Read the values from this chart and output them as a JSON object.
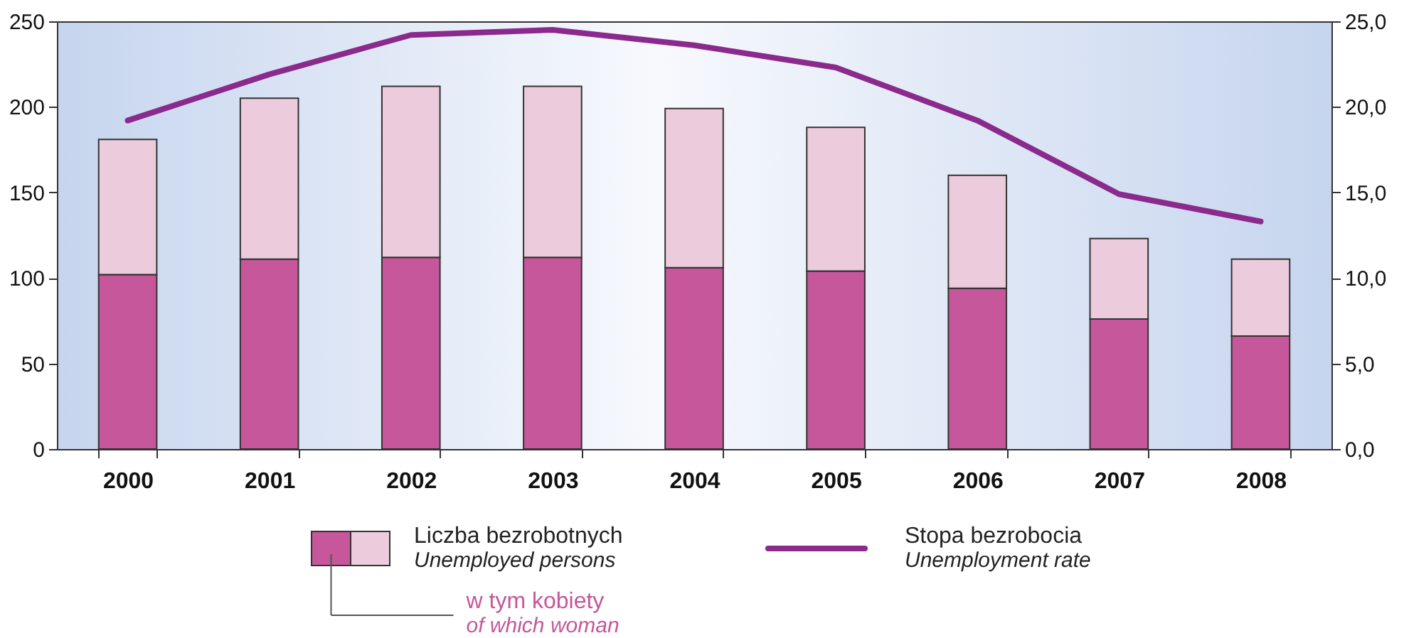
{
  "chart_data": {
    "type": "bar",
    "categories": [
      "2000",
      "2001",
      "2002",
      "2003",
      "2004",
      "2005",
      "2006",
      "2007",
      "2008"
    ],
    "series": [
      {
        "name": "w tym kobiety\nof which woman",
        "color": "#c5579a",
        "values": [
          102,
          111,
          112,
          112,
          106,
          104,
          94,
          76,
          66
        ]
      },
      {
        "name": "Liczba bezrobotnych\nUnemployed persons",
        "color": "#ecccdc",
        "values": [
          79,
          94,
          100,
          100,
          93,
          84,
          66,
          47,
          45
        ]
      },
      {
        "name": "Stopa bezrobocia\nUnemployment rate",
        "type": "line",
        "axis": "y2",
        "color": "#8a2a8c",
        "values": [
          19.2,
          21.9,
          24.2,
          24.5,
          23.6,
          22.3,
          19.2,
          14.9,
          13.3
        ]
      }
    ],
    "stacked": true,
    "ylim": [
      0,
      250
    ],
    "yticks": [
      0,
      50,
      100,
      150,
      200,
      250
    ],
    "y2lim": [
      0,
      25
    ],
    "y2ticks": [
      {
        "value": 0,
        "label": "0,0"
      },
      {
        "value": 5,
        "label": "5,0"
      },
      {
        "value": 10,
        "label": "10,0"
      },
      {
        "value": 15,
        "label": "15,0"
      },
      {
        "value": 20,
        "label": "20,0"
      },
      {
        "value": 25,
        "label": "25,0"
      }
    ],
    "legend": "bottom"
  }
}
